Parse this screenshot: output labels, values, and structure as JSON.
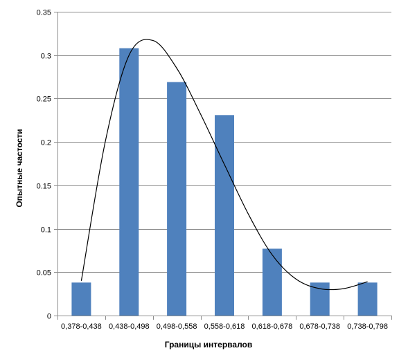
{
  "chart_data": {
    "type": "bar",
    "title": "",
    "xlabel": "Границы интервалов",
    "ylabel": "Опытные частости",
    "categories": [
      "0,378-0,438",
      "0,438-0,498",
      "0,498-0,558",
      "0,558-0,618",
      "0,618-0,678",
      "0,678-0,738",
      "0,738-0,798"
    ],
    "series": [
      {
        "values": [
          0.038,
          0.308,
          0.269,
          0.231,
          0.077,
          0.038,
          0.038
        ],
        "color": "#4F81BD"
      }
    ],
    "curve": {
      "type": "smooth-line",
      "color": "#000000",
      "points": [
        {
          "x": 0.0,
          "y": 0.04
        },
        {
          "x": 0.5,
          "y": 0.2
        },
        {
          "x": 1.0,
          "y": 0.3
        },
        {
          "x": 1.5,
          "y": 0.317
        },
        {
          "x": 2.0,
          "y": 0.285
        },
        {
          "x": 2.5,
          "y": 0.232
        },
        {
          "x": 3.0,
          "y": 0.174
        },
        {
          "x": 3.5,
          "y": 0.117
        },
        {
          "x": 4.0,
          "y": 0.07
        },
        {
          "x": 4.5,
          "y": 0.042
        },
        {
          "x": 5.0,
          "y": 0.031
        },
        {
          "x": 5.5,
          "y": 0.031
        },
        {
          "x": 6.0,
          "y": 0.039
        }
      ]
    },
    "yticks": [
      "0",
      "0.05",
      "0.1",
      "0.15",
      "0.2",
      "0.25",
      "0.3",
      "0.35"
    ],
    "ylim": [
      0,
      0.35
    ],
    "grid": true,
    "legend": "none"
  }
}
